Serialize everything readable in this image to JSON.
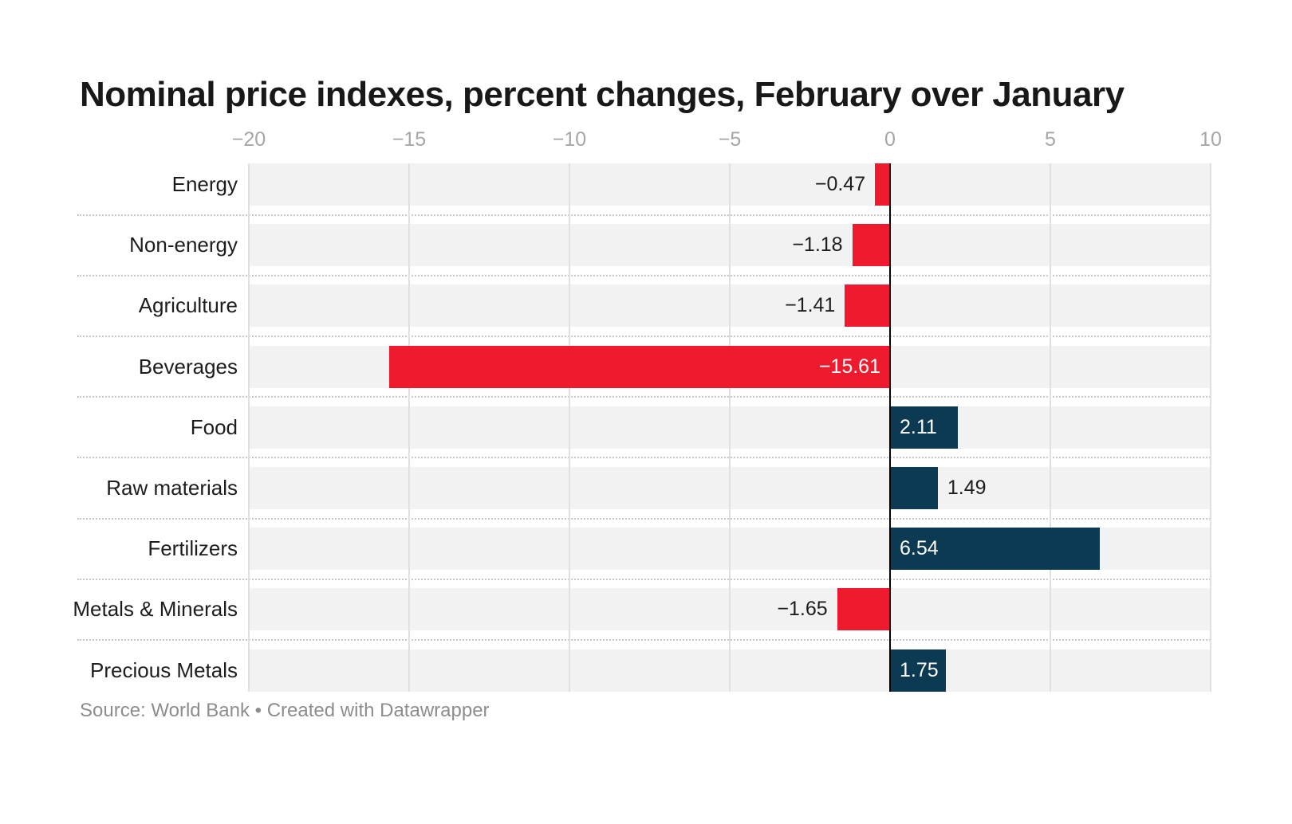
{
  "chart_data": {
    "type": "bar",
    "orientation": "horizontal",
    "title": "Nominal price indexes, percent changes, February over January",
    "source": "Source: World Bank • Created with Datawrapper",
    "categories": [
      "Energy",
      "Non-energy",
      "Agriculture",
      "Beverages",
      "Food",
      "Raw materials",
      "Fertilizers",
      "Metals & Minerals",
      "Precious Metals"
    ],
    "values": [
      -0.47,
      -1.18,
      -1.41,
      -15.61,
      2.11,
      1.49,
      6.54,
      -1.65,
      1.75
    ],
    "value_labels": [
      "−0.47",
      "−1.18",
      "−1.41",
      "−15.61",
      "2.11",
      "1.49",
      "6.54",
      "−1.65",
      "1.75"
    ],
    "inside_labels": [
      false,
      false,
      false,
      true,
      true,
      false,
      true,
      false,
      true
    ],
    "axis": {
      "min": -20,
      "max": 10,
      "ticks": [
        -20,
        -15,
        -10,
        -5,
        0,
        5,
        10
      ],
      "tick_labels": [
        "−20",
        "−15",
        "−10",
        "−5",
        "0",
        "5",
        "10"
      ],
      "grid": true
    },
    "legend": null,
    "colors": {
      "negative": "#ed1b2d",
      "positive": "#0c3a52",
      "row_band": "#f2f2f2",
      "gridline": "#e0e0e0",
      "zero_line": "#000000"
    }
  }
}
